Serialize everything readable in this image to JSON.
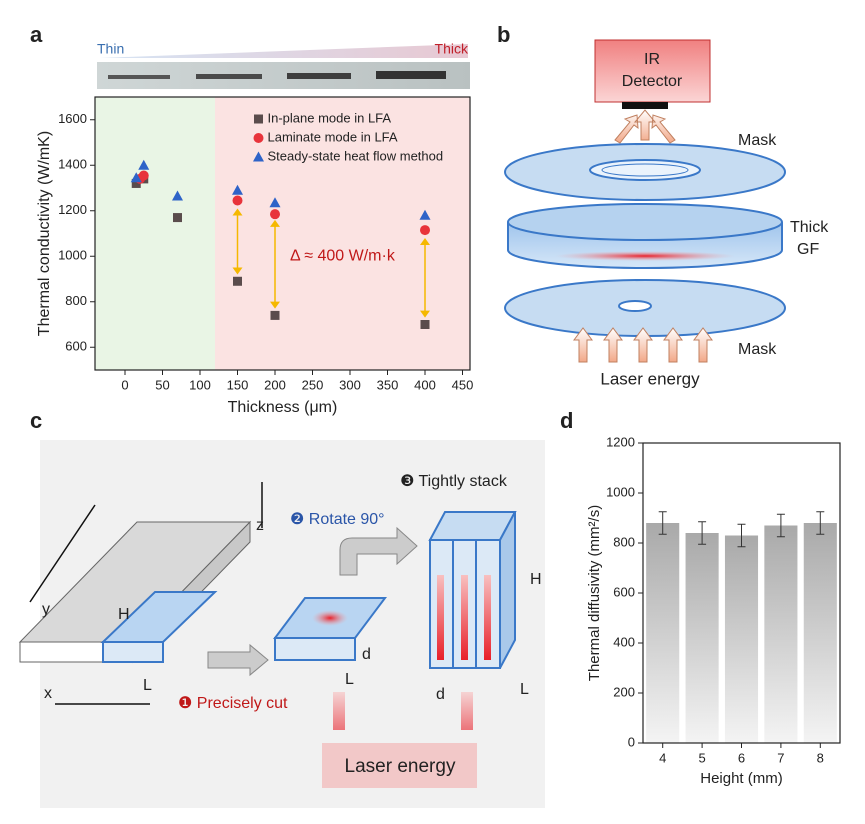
{
  "panel_labels": [
    "a",
    "b",
    "c",
    "d"
  ],
  "chart_data": [
    {
      "type": "scatter",
      "strip_labels": [
        "Thin",
        "Thick"
      ],
      "xlabel": "Thickness (μm)",
      "ylabel": "Thermal conductivity (W/mK)",
      "xlim": [
        -40,
        460
      ],
      "ylim": [
        500,
        1700
      ],
      "xticks": [
        0,
        50,
        100,
        150,
        200,
        250,
        300,
        350,
        400,
        450
      ],
      "yticks": [
        600,
        800,
        1000,
        1200,
        1400,
        1600
      ],
      "shaded_regions": [
        {
          "xlim": [
            -40,
            120
          ],
          "color": "#e9f5e5"
        },
        {
          "xlim": [
            120,
            460
          ],
          "color": "#fbe3e2"
        }
      ],
      "series": [
        {
          "name": "In-plane mode in LFA",
          "color": "#5a4c4c",
          "marker": "square",
          "x": [
            15,
            25,
            70,
            150,
            200,
            400
          ],
          "values": [
            1320,
            1340,
            1170,
            890,
            740,
            700
          ]
        },
        {
          "name": "Laminate mode in LFA",
          "color": "#e8333b",
          "marker": "circle",
          "x": [
            20,
            25,
            150,
            200,
            400
          ],
          "values": [
            1340,
            1355,
            1245,
            1185,
            1115
          ]
        },
        {
          "name": "Steady-state heat flow method",
          "color": "#2e63c8",
          "marker": "triangle",
          "x": [
            15,
            25,
            70,
            150,
            200,
            400
          ],
          "values": [
            1345,
            1400,
            1265,
            1290,
            1235,
            1180
          ]
        }
      ],
      "arrows": [
        {
          "x": 150,
          "y": [
            1210,
            920
          ]
        },
        {
          "x": 200,
          "y": [
            1160,
            770
          ]
        },
        {
          "x": 400,
          "y": [
            1080,
            730
          ]
        }
      ],
      "arrow_color": "#f5b800",
      "annotation": "Δ ≈ 400 W/m·k"
    },
    {
      "type": "bar",
      "xlabel": "Height (mm)",
      "ylabel": "Thermal diffusivity (mm²/s)",
      "categories": [
        "4",
        "5",
        "6",
        "7",
        "8"
      ],
      "values": [
        880,
        840,
        830,
        870,
        880
      ],
      "errors": [
        45,
        45,
        45,
        45,
        45
      ],
      "ylim": [
        0,
        1200
      ],
      "yticks": [
        0,
        200,
        400,
        600,
        800,
        1000,
        1200
      ]
    }
  ],
  "diagram_b": {
    "detector": [
      "IR",
      "Detector"
    ],
    "mask_top": "Mask",
    "sample": [
      "Thick",
      "GF"
    ],
    "mask_bottom": "Mask",
    "laser": "Laser energy"
  },
  "diagram_c": {
    "y": "y",
    "H1": "H",
    "x": "x",
    "L1": "L",
    "z": "z",
    "rotate": "❷ Rotate 90°",
    "stack": "❸ Tightly stack",
    "d1": "d",
    "L2": "L",
    "cut": "❶ Precisely cut",
    "H2": "H",
    "L3": "L",
    "d2": "d",
    "laser": "Laser energy"
  }
}
